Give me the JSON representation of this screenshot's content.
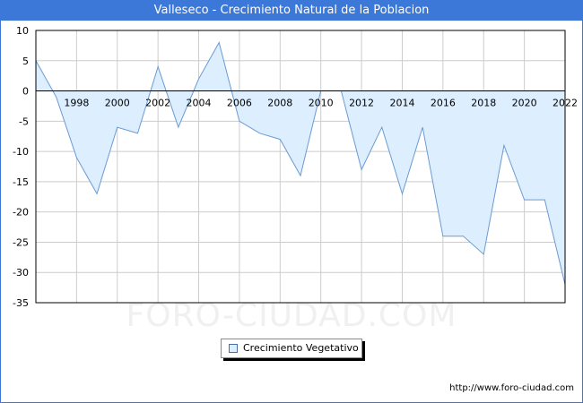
{
  "header": {
    "title": "Valleseco - Crecimiento Natural de la Poblacion"
  },
  "watermark": "FORO-CIUDAD.COM",
  "footer": {
    "url": "http://www.foro-ciudad.com"
  },
  "legend": {
    "label": "Crecimiento Vegetativo"
  },
  "colors": {
    "fill": "#ddeeff",
    "line": "#6a9bd1",
    "frame": "#3c78d8",
    "grid": "#cccccc"
  },
  "chart_data": {
    "type": "area",
    "title": "Valleseco - Crecimiento Natural de la Poblacion",
    "xlabel": "",
    "ylabel": "",
    "ylim": [
      -35,
      10
    ],
    "xlim": [
      1996,
      2022
    ],
    "yticks": [
      10,
      5,
      0,
      -5,
      -10,
      -15,
      -20,
      -25,
      -30,
      -35
    ],
    "xticks": [
      1998,
      2000,
      2002,
      2004,
      2006,
      2008,
      2010,
      2012,
      2014,
      2016,
      2018,
      2020,
      2022
    ],
    "grid": true,
    "legend_position": "bottom-center",
    "series": [
      {
        "name": "Crecimiento Vegetativo",
        "x": [
          1996,
          1997,
          1998,
          1999,
          2000,
          2001,
          2002,
          2003,
          2004,
          2005,
          2006,
          2007,
          2008,
          2009,
          2010,
          2011,
          2012,
          2013,
          2014,
          2015,
          2016,
          2017,
          2018,
          2019,
          2020,
          2021,
          2022
        ],
        "values": [
          5,
          -1,
          -11,
          -17,
          -6,
          -7,
          4,
          -6,
          2,
          8,
          -5,
          -7,
          -8,
          -14,
          0,
          0,
          -13,
          -6,
          -17,
          -6,
          -24,
          -24,
          -27,
          -9,
          -18,
          -18,
          -32
        ]
      }
    ]
  }
}
